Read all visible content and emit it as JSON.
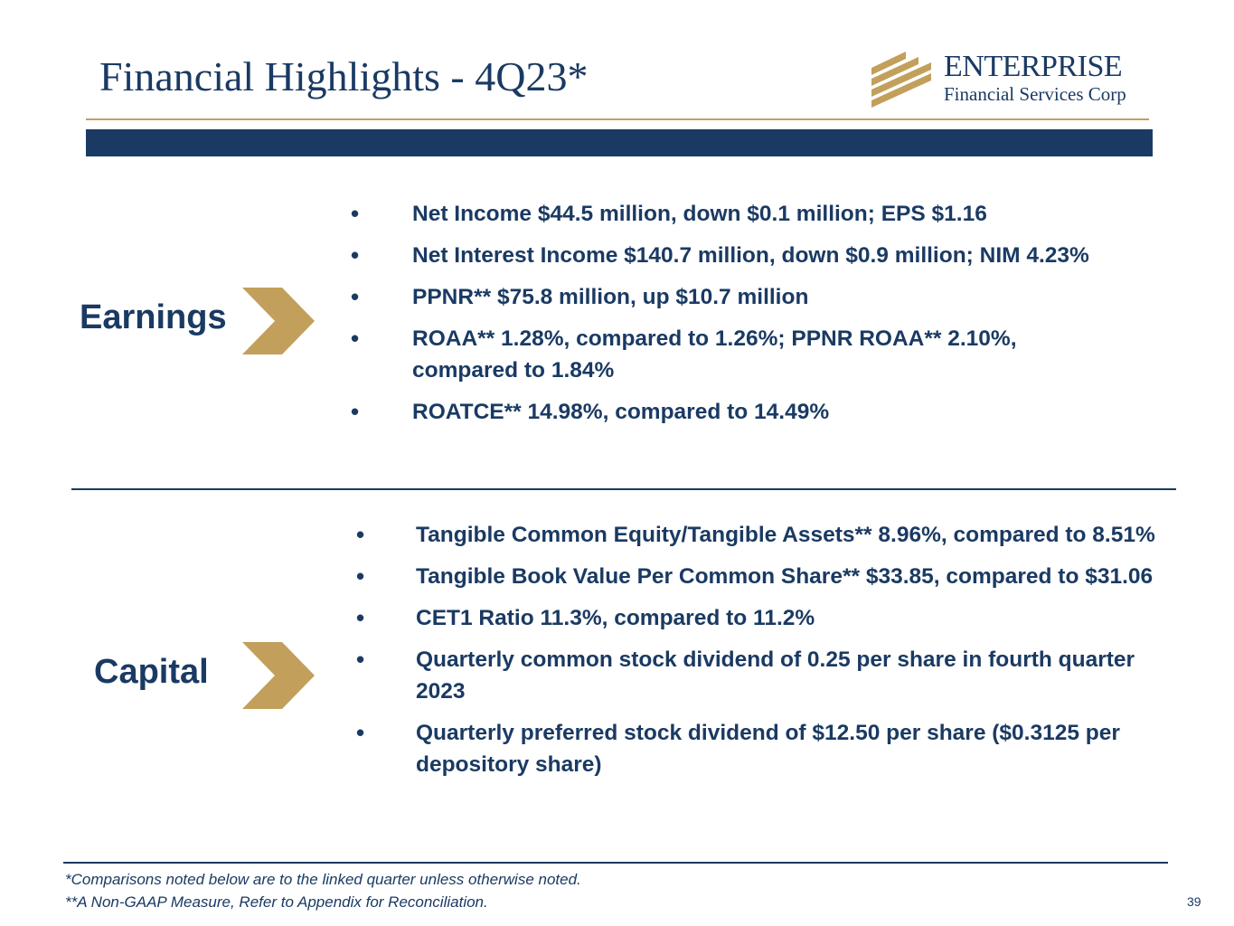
{
  "header": {
    "title": "Financial Highlights - 4Q23*",
    "logo_name": "ENTERPRISE",
    "logo_sub": "Financial Services Corp"
  },
  "colors": {
    "navy": "#1a3a63",
    "gold": "#c2a05c"
  },
  "earnings": {
    "label": "Earnings",
    "icon": "chevron-right-icon",
    "bullets": [
      "Net Income $44.5 million, down $0.1 million; EPS $1.16",
      "Net Interest Income $140.7 million, down $0.9 million; NIM 4.23%",
      "PPNR** $75.8 million, up $10.7 million",
      "ROAA** 1.28%, compared to 1.26%; PPNR ROAA** 2.10%, compared to 1.84%",
      "ROATCE** 14.98%, compared to 14.49%"
    ]
  },
  "capital": {
    "label": "Capital",
    "icon": "chevron-right-icon",
    "bullets": [
      "Tangible Common Equity/Tangible Assets** 8.96%, compared to 8.51%",
      "Tangible Book Value Per Common Share** $33.85, compared to $31.06",
      "CET1 Ratio 11.3%, compared to 11.2%",
      "Quarterly common stock dividend of 0.25 per share in fourth quarter 2023",
      "Quarterly preferred stock dividend of $12.50 per share ($0.3125 per depository share)"
    ]
  },
  "footnotes": {
    "note1": "*Comparisons noted below are to the linked quarter unless otherwise noted.",
    "note2": "**A Non-GAAP Measure, Refer to Appendix for Reconciliation."
  },
  "page_number": "39"
}
